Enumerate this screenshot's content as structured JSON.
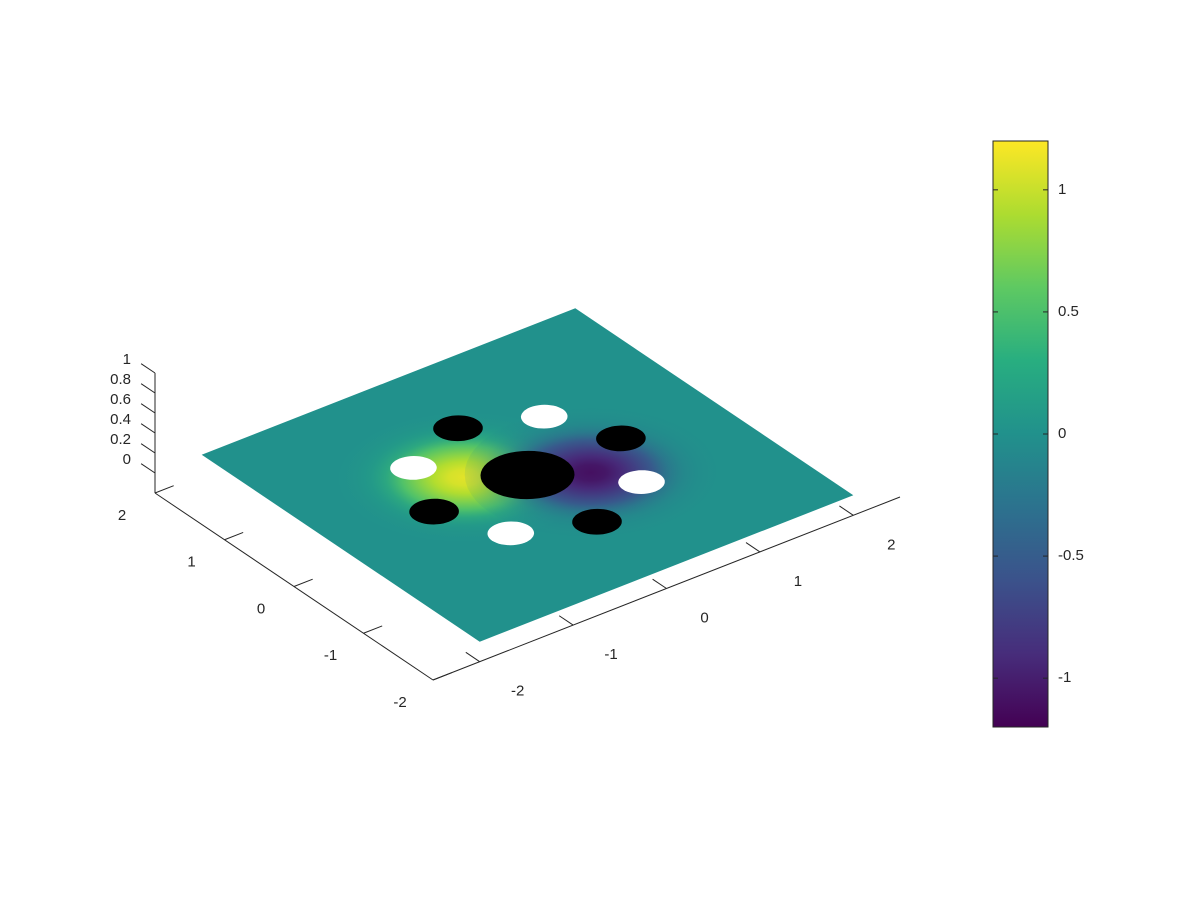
{
  "chart_data": {
    "type": "surface3d",
    "xlim": [
      -2.5,
      2.5
    ],
    "xticks": [
      -2,
      -1,
      0,
      1,
      2
    ],
    "ylim": [
      -2,
      2
    ],
    "yticks": [
      -2,
      -1,
      0,
      1,
      2
    ],
    "zlim": [
      -0.2,
      1
    ],
    "zticks": [
      0,
      0.2,
      0.4,
      0.6,
      0.8,
      1
    ],
    "surface": {
      "extent": [
        -2,
        2
      ],
      "base": 0,
      "peak": {
        "x": -0.45,
        "y": 0.3,
        "value": 1.1
      },
      "trough": {
        "x": 0.45,
        "y": -0.3,
        "value": -1.1
      },
      "width": 0.45
    },
    "holes": [
      {
        "x": 0.7,
        "y": 0.7,
        "r": 0.2
      },
      {
        "x": -0.7,
        "y": 0.7,
        "r": 0.2
      },
      {
        "x": -0.7,
        "y": -0.7,
        "r": 0.2
      },
      {
        "x": 0.7,
        "y": -0.7,
        "r": 0.2
      }
    ],
    "mesh_disks": [
      {
        "x": 0,
        "y": 0,
        "r": 0.4
      },
      {
        "x": 0,
        "y": 1,
        "r": 0.21
      },
      {
        "x": 1,
        "y": 0,
        "r": 0.21
      },
      {
        "x": 0,
        "y": -1,
        "r": 0.21
      },
      {
        "x": -1,
        "y": 0,
        "r": 0.21
      }
    ],
    "hole_color": "#ffffff",
    "mesh_color": "#000000",
    "colorbar": {
      "clim": [
        -1.2,
        1.2
      ],
      "ticks": [
        -1,
        -0.5,
        0,
        0.5,
        1
      ]
    },
    "colormap": [
      "#440154",
      "#472d7b",
      "#3b528b",
      "#2c728e",
      "#21918c",
      "#28ae80",
      "#5ec962",
      "#addc30",
      "#fde725"
    ]
  }
}
